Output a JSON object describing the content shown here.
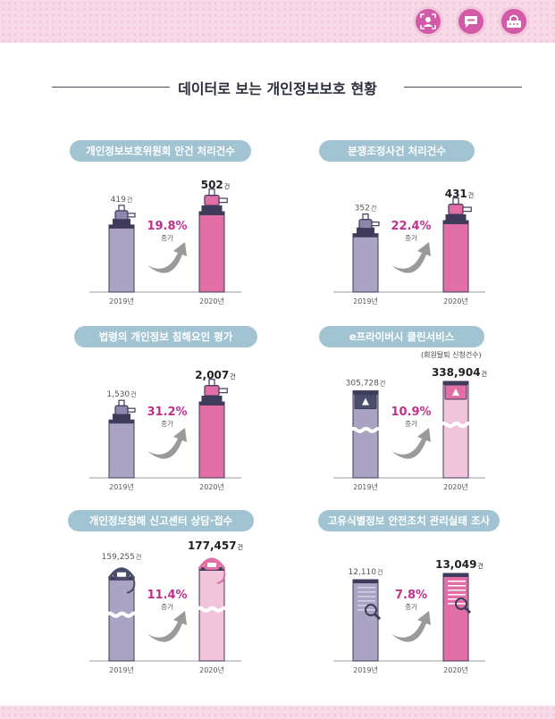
{
  "page_title": "데이터로 보는 개인정보보호 현황",
  "colors": {
    "bar_2019": "#aaa3c4",
    "bar_2020": "#e16ea5",
    "bar_2020_light": "#f2c4dc",
    "accent_text": "#c2308c",
    "panel_title_bg": "#a2c4d2"
  },
  "top_icons": [
    "face-scan-icon",
    "chat-bubble-icon",
    "lock-password-icon"
  ],
  "chart_data": [
    {
      "type": "bar",
      "title": "개인정보보호위원회 안건 처리건수",
      "categories": [
        "2019년",
        "2020년"
      ],
      "values": [
        419,
        502
      ],
      "value_labels": [
        "419",
        "502"
      ],
      "unit": "건",
      "change_pct": "19.8%",
      "change_label": "증가",
      "icon": "lamp-post-icon"
    },
    {
      "type": "bar",
      "title": "분쟁조정사건 처리건수",
      "categories": [
        "2019년",
        "2020년"
      ],
      "values": [
        352,
        431
      ],
      "value_labels": [
        "352",
        "431"
      ],
      "unit": "건",
      "change_pct": "22.4%",
      "change_label": "증가",
      "icon": "lamp-post-icon"
    },
    {
      "type": "bar",
      "title": "법령의 개인정보 침해요인 평가",
      "categories": [
        "2019년",
        "2020년"
      ],
      "values": [
        1530,
        2007
      ],
      "value_labels": [
        "1,530",
        "2,007"
      ],
      "unit": "건",
      "change_pct": "31.2%",
      "change_label": "증가",
      "icon": "lamp-post-icon"
    },
    {
      "type": "bar",
      "title": "e프라이버시 클린서비스",
      "subtitle": "(회원탈퇴 신청건수)",
      "categories": [
        "2019년",
        "2020년"
      ],
      "values": [
        305728,
        338904
      ],
      "value_labels": [
        "305,728",
        "338,904"
      ],
      "unit": "건",
      "change_pct": "10.9%",
      "change_label": "증가",
      "icon": "monitor-icon"
    },
    {
      "type": "bar",
      "title": "개인정보침해 신고센터 상담·접수",
      "categories": [
        "2019년",
        "2020년"
      ],
      "values": [
        159255,
        177457
      ],
      "value_labels": [
        "159,255",
        "177,457"
      ],
      "unit": "건",
      "change_pct": "11.4%",
      "change_label": "증가",
      "icon": "headset-icon"
    },
    {
      "type": "bar",
      "title": "고유식별정보 안전조치 관리실태 조사",
      "categories": [
        "2019년",
        "2020년"
      ],
      "values": [
        12110,
        13049
      ],
      "value_labels": [
        "12,110",
        "13,049"
      ],
      "unit": "건",
      "change_pct": "7.8%",
      "change_label": "증가",
      "icon": "document-magnifier-icon"
    }
  ]
}
